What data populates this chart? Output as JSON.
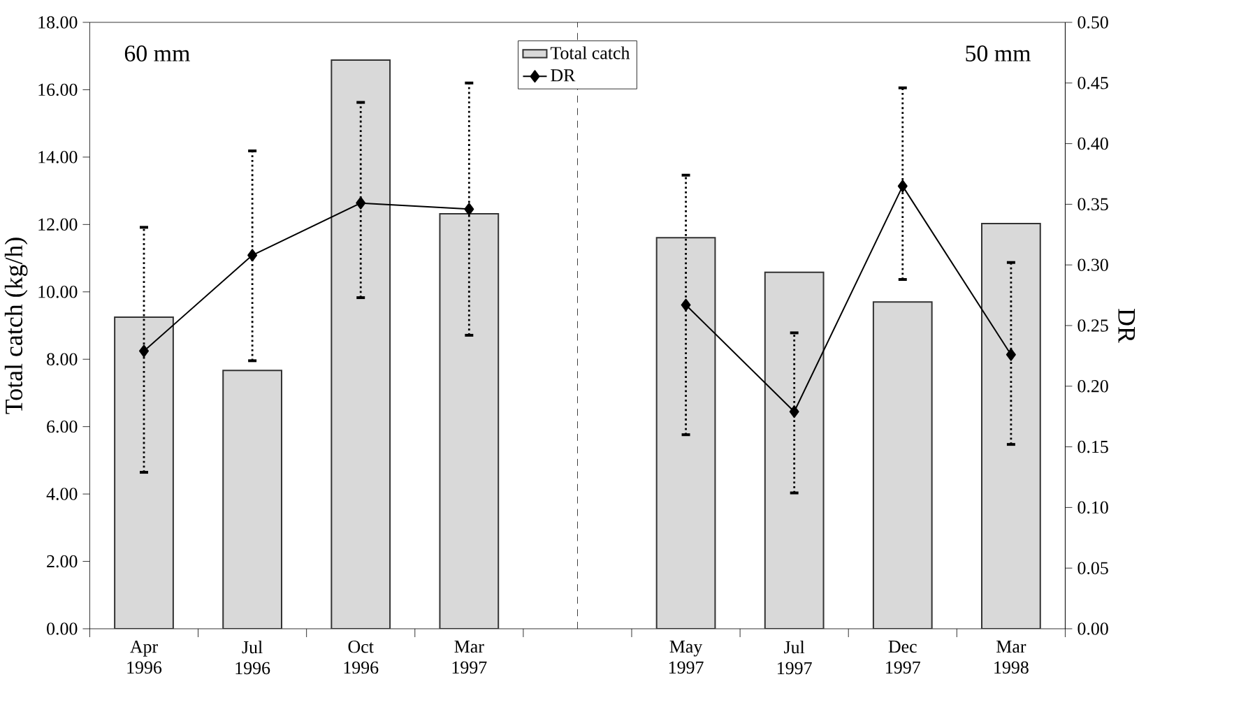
{
  "chart_data": {
    "type": "bar",
    "ylabel": "Total catch (kg/h)",
    "y2label": "DR",
    "categories": [
      "Apr 1996",
      "Jul 1996",
      "Oct 1996",
      "Mar 1997",
      null,
      "May 1997",
      "Jul 1997",
      "Dec 1997",
      "Mar 1998"
    ],
    "series": [
      {
        "name": "Total catch",
        "color": "#d9d9d9",
        "values": [
          9.25,
          7.67,
          16.88,
          12.32,
          null,
          11.61,
          10.58,
          9.7,
          12.03
        ]
      },
      {
        "name": "DR",
        "type": "line",
        "axis": "y2",
        "color": "#000000",
        "values": [
          0.229,
          0.308,
          0.351,
          0.346,
          null,
          0.267,
          0.179,
          0.365,
          0.226
        ],
        "errors": [
          [
            0.129,
            0.331
          ],
          [
            0.221,
            0.394
          ],
          [
            0.273,
            0.434
          ],
          [
            0.242,
            0.45
          ],
          null,
          [
            0.16,
            0.374
          ],
          [
            0.112,
            0.244
          ],
          [
            0.288,
            0.446
          ],
          [
            0.152,
            0.302
          ]
        ]
      }
    ],
    "ylim": [
      0,
      18
    ],
    "yticks": [
      {
        "value": 0,
        "label": "0.00"
      },
      {
        "value": 2,
        "label": "2.00"
      },
      {
        "value": 4,
        "label": "4.00"
      },
      {
        "value": 6,
        "label": "6.00"
      },
      {
        "value": 8,
        "label": "8.00"
      },
      {
        "value": 10,
        "label": "10.00"
      },
      {
        "value": 12,
        "label": "12.00"
      },
      {
        "value": 14,
        "label": "14.00"
      },
      {
        "value": 16,
        "label": "16.00"
      },
      {
        "value": 18,
        "label": "18.00"
      }
    ],
    "y2lim": [
      0,
      0.5
    ],
    "y2ticks": [
      {
        "value": 0,
        "label": "0.00"
      },
      {
        "value": 0.05,
        "label": "0.05"
      },
      {
        "value": 0.1,
        "label": "0.10"
      },
      {
        "value": 0.15,
        "label": "0.15"
      },
      {
        "value": 0.2,
        "label": "0.20"
      },
      {
        "value": 0.25,
        "label": "0.25"
      },
      {
        "value": 0.3,
        "label": "0.30"
      },
      {
        "value": 0.35,
        "label": "0.35"
      },
      {
        "value": 0.4,
        "label": "0.40"
      },
      {
        "value": 0.45,
        "label": "0.45"
      },
      {
        "value": 0.5,
        "label": "0.50"
      }
    ],
    "annotations": [
      "60 mm",
      "50 mm"
    ],
    "legend": "top",
    "marker": "diamond"
  }
}
